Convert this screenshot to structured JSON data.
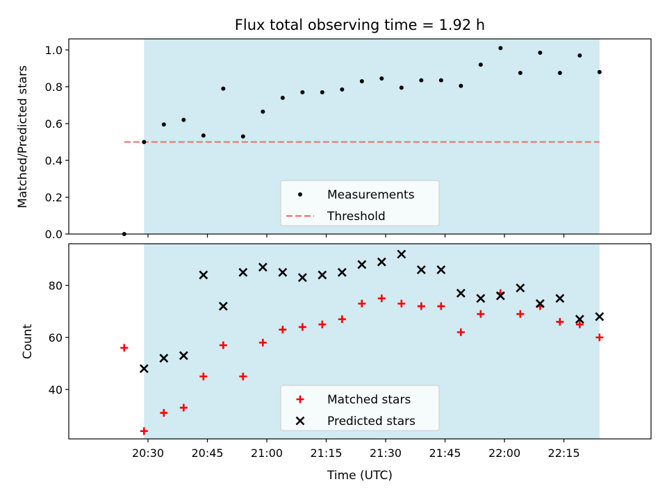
{
  "chart_data": [
    {
      "type": "scatter",
      "title": "Flux total observing time = 1.92 h",
      "ylabel": "Matched/Predicted stars",
      "xlabel": "",
      "ylim": [
        0,
        1.06
      ],
      "yticks": [
        "0.0",
        "0.2",
        "0.4",
        "0.6",
        "0.8",
        "1.0"
      ],
      "shaded_span": [
        "20:29",
        "22:24"
      ],
      "shade_color": "#add8e6",
      "threshold": {
        "value": 0.5,
        "from": "20:24",
        "to": "22:24",
        "color": "#f07070"
      },
      "legend_position": "lower center",
      "legend": [
        "Measurements",
        "Threshold"
      ],
      "series": [
        {
          "name": "Measurements",
          "color": "#000000",
          "marker": "dot",
          "x": [
            "20:24",
            "20:29",
            "20:34",
            "20:39",
            "20:44",
            "20:49",
            "20:54",
            "20:59",
            "21:04",
            "21:09",
            "21:14",
            "21:19",
            "21:24",
            "21:29",
            "21:34",
            "21:39",
            "21:44",
            "21:49",
            "21:54",
            "21:59",
            "22:04",
            "22:09",
            "22:14",
            "22:19",
            "22:24"
          ],
          "y": [
            0.0,
            0.5,
            0.595,
            0.62,
            0.535,
            0.79,
            0.53,
            0.665,
            0.74,
            0.77,
            0.77,
            0.785,
            0.83,
            0.845,
            0.795,
            0.835,
            0.835,
            0.805,
            0.92,
            1.01,
            0.875,
            0.985,
            0.875,
            0.97,
            0.88
          ]
        }
      ]
    },
    {
      "type": "scatter",
      "title": "",
      "ylabel": "Count",
      "xlabel": "Time (UTC)",
      "ylim": [
        21,
        96
      ],
      "yticks": [
        "40",
        "60",
        "80"
      ],
      "xticks": [
        "20:30",
        "20:45",
        "21:00",
        "21:15",
        "21:30",
        "21:45",
        "22:00",
        "22:15"
      ],
      "shaded_span": [
        "20:29",
        "22:24"
      ],
      "shade_color": "#add8e6",
      "legend_position": "lower center",
      "legend": [
        "Matched stars",
        "Predicted stars"
      ],
      "series": [
        {
          "name": "Matched stars",
          "color": "#ff0000",
          "marker": "plus",
          "x": [
            "20:24",
            "20:29",
            "20:34",
            "20:39",
            "20:44",
            "20:49",
            "20:54",
            "20:59",
            "21:04",
            "21:09",
            "21:14",
            "21:19",
            "21:24",
            "21:29",
            "21:34",
            "21:39",
            "21:44",
            "21:49",
            "21:54",
            "21:59",
            "22:04",
            "22:09",
            "22:14",
            "22:19",
            "22:24"
          ],
          "y": [
            56,
            24,
            31,
            33,
            45,
            57,
            45,
            58,
            63,
            64,
            65,
            67,
            73,
            75,
            73,
            72,
            72,
            62,
            69,
            77,
            69,
            72,
            66,
            65,
            60
          ]
        },
        {
          "name": "Predicted stars",
          "color": "#000000",
          "marker": "x",
          "x": [
            "20:29",
            "20:34",
            "20:39",
            "20:44",
            "20:49",
            "20:54",
            "20:59",
            "21:04",
            "21:09",
            "21:14",
            "21:19",
            "21:24",
            "21:29",
            "21:34",
            "21:39",
            "21:44",
            "21:49",
            "21:54",
            "21:59",
            "22:04",
            "22:09",
            "22:14",
            "22:19",
            "22:24"
          ],
          "y": [
            48,
            52,
            53,
            84,
            72,
            85,
            87,
            85,
            83,
            84,
            85,
            88,
            89,
            92,
            86,
            86,
            77,
            75,
            76,
            79,
            73,
            75,
            67,
            68
          ]
        }
      ]
    }
  ]
}
